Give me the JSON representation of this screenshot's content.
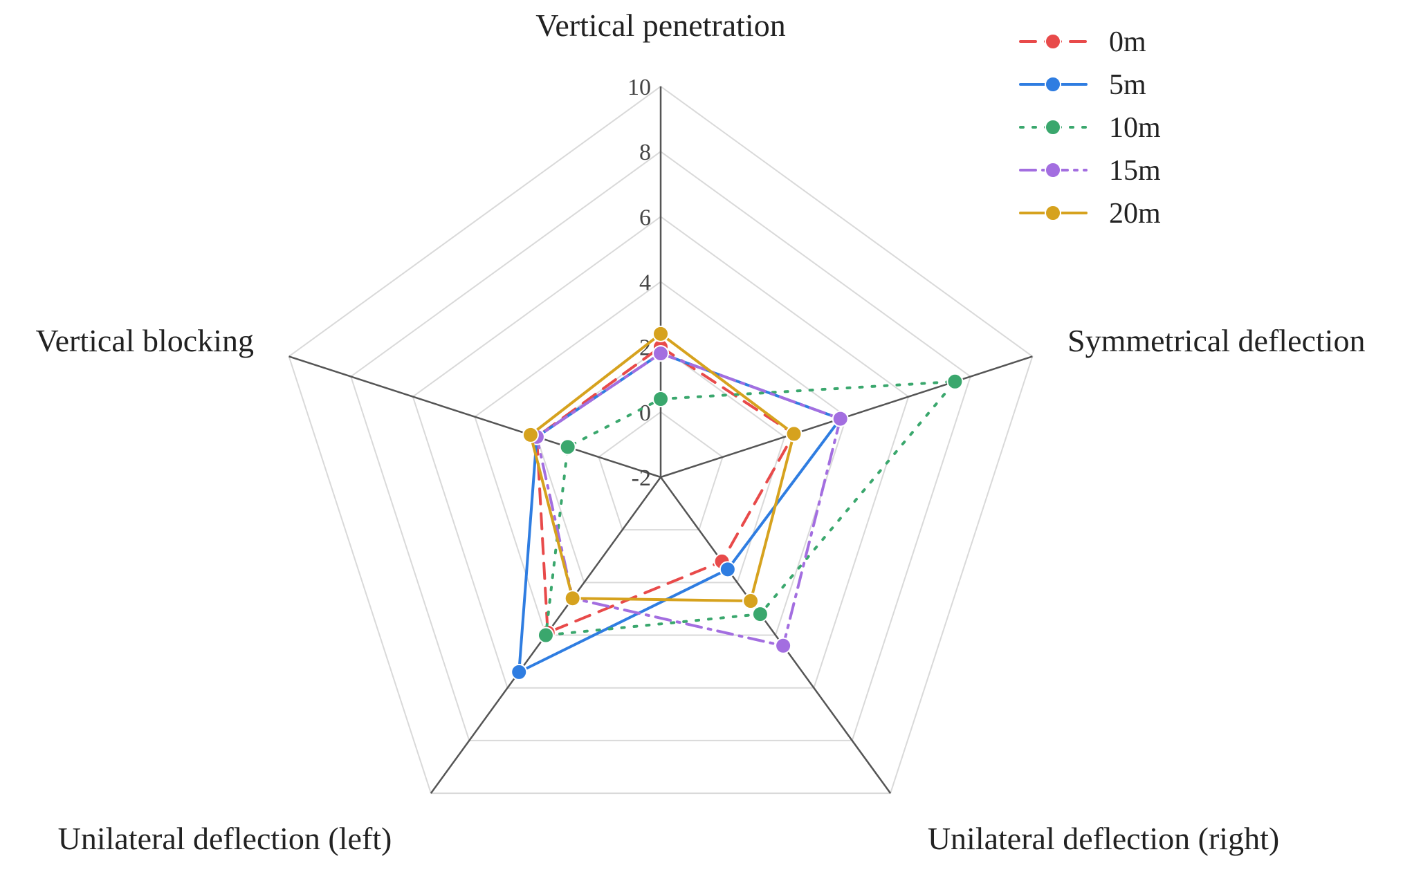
{
  "chart_data": {
    "type": "radar",
    "title": "",
    "axes": [
      "Vertical penetration",
      "Symmetrical deflection",
      "Unilateral deflection (right)",
      "Unilateral deflection (left)",
      "Vertical blocking"
    ],
    "rlim": [
      -2,
      10
    ],
    "ticks": [
      "10",
      "8",
      "6",
      "4",
      "2",
      "0",
      "-2"
    ],
    "tick_values": [
      10,
      8,
      6,
      4,
      2,
      0,
      -2
    ],
    "grid": true,
    "legend_position": "top-right",
    "series": [
      {
        "name": "0m",
        "color": "#e84a4a",
        "dash": "dashed",
        "values": [
          2.0,
          2.3,
          1.2,
          3.9,
          2.0
        ]
      },
      {
        "name": "5m",
        "color": "#2f7de1",
        "dash": "solid",
        "values": [
          1.8,
          3.8,
          1.5,
          5.4,
          2.0
        ]
      },
      {
        "name": "10m",
        "color": "#3aa76d",
        "dash": "dotted",
        "values": [
          0.4,
          7.5,
          3.2,
          4.0,
          1.0
        ]
      },
      {
        "name": "15m",
        "color": "#a36ee0",
        "dash": "dashdot",
        "values": [
          1.8,
          3.8,
          4.4,
          2.6,
          2.0
        ]
      },
      {
        "name": "20m",
        "color": "#d6a21e",
        "dash": "solid",
        "values": [
          2.4,
          2.3,
          2.7,
          2.6,
          2.2
        ]
      }
    ]
  }
}
